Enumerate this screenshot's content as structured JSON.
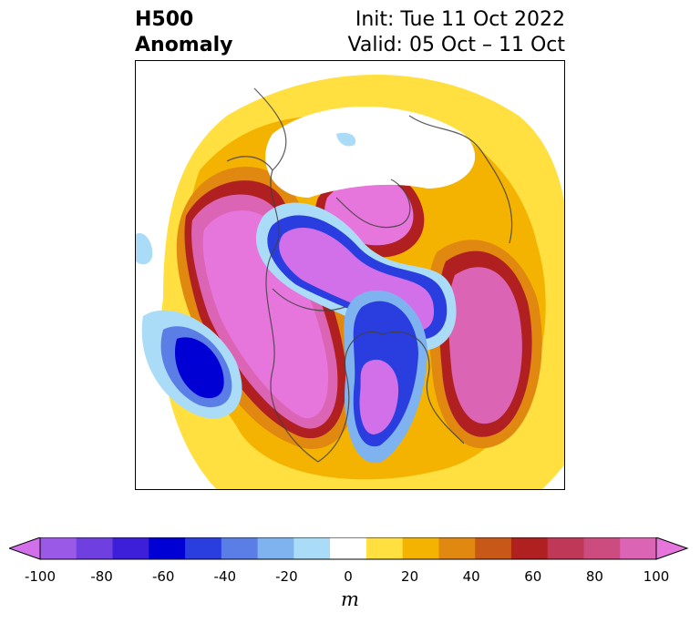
{
  "header": {
    "title_line1": "H500",
    "title_line2": "Anomaly",
    "init_text": "Init: Tue 11 Oct 2022",
    "valid_text": "Valid: 05 Oct – 11 Oct"
  },
  "colorbar": {
    "unit": "m",
    "ticks": [
      "-100",
      "-80",
      "-60",
      "-40",
      "-20",
      "0",
      "20",
      "40",
      "60",
      "80",
      "100"
    ],
    "colors": [
      "#9b59e8",
      "#6f3fe0",
      "#3d1fd9",
      "#0000d4",
      "#2a3ee0",
      "#5a7ee6",
      "#7fb3ef",
      "#aadcf8",
      "#ffffff",
      "#ffe040",
      "#f3b300",
      "#e08810",
      "#c85818",
      "#b02020",
      "#c03858",
      "#cc4c80",
      "#dc64b4"
    ],
    "min_color": "#d270ea",
    "max_color": "#e676dc"
  },
  "map": {
    "projection": "north-polar-stereographic",
    "field": "500 hPa geopotential height anomaly"
  }
}
